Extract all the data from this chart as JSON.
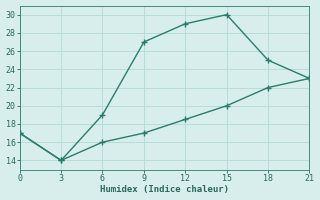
{
  "line1_x": [
    0,
    3,
    6,
    9,
    12,
    15,
    18,
    21
  ],
  "line1_y": [
    17,
    14,
    19,
    27,
    29,
    30,
    25,
    23
  ],
  "line2_x": [
    0,
    3,
    6,
    9,
    12,
    15,
    18,
    21
  ],
  "line2_y": [
    17,
    14,
    16,
    17,
    18.5,
    20,
    22,
    23
  ],
  "line_color": "#2a7d6e",
  "bg_color": "#d8eeec",
  "grid_color": "#b8dcd8",
  "xlabel": "Humidex (Indice chaleur)",
  "xlim": [
    0,
    21
  ],
  "ylim": [
    13,
    31
  ],
  "xticks": [
    0,
    3,
    6,
    9,
    12,
    15,
    18,
    21
  ],
  "yticks": [
    14,
    16,
    18,
    20,
    22,
    24,
    26,
    28,
    30
  ],
  "font_color": "#2a6860"
}
